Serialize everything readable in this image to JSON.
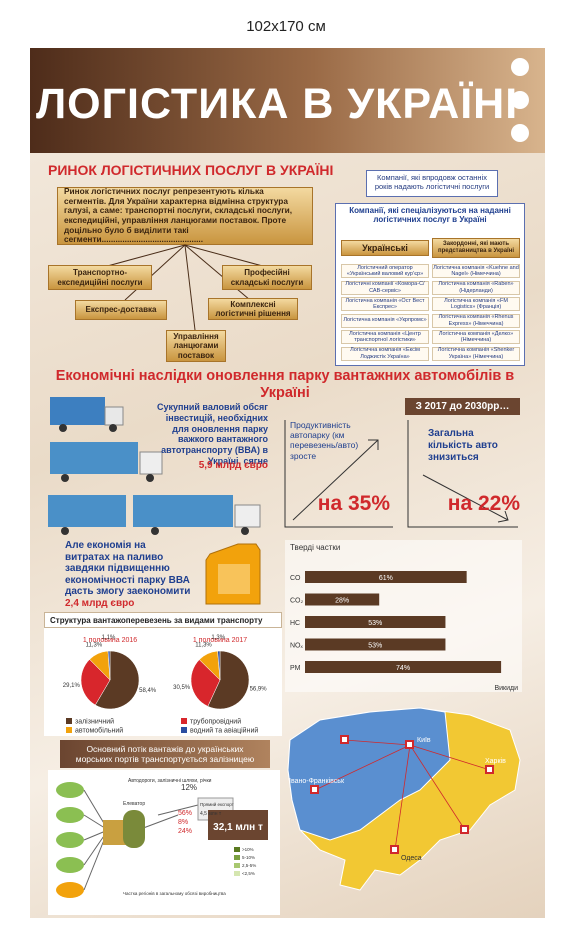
{
  "size_label": "102x170 см",
  "title": "ЛОГІСТИКА В УКРАЇНІ",
  "market": {
    "title": "РИНОК ЛОГІСТИЧНИХ ПОСЛУГ В УКРАЇНІ",
    "intro": "Ринок логістичних послуг репрезентують кілька сегментів. Для України характерна відмінна структура галузі, а саме: транспортні послуги, складські послуги, експедиційні, управління ланцюгами поставок. Проте доцільно було б виділити такі сегменти............................................",
    "segments": [
      "Транспортно-експедиційні послуги",
      "Експрес-доставка",
      "Управління ланцюгами поставок",
      "Комплексні логістичні рішення",
      "Професійні складські послуги"
    ]
  },
  "companies": {
    "note": "Компанії, які впродовж останніх років надають логістичні послуги",
    "title": "Компанії, які спеціалізуються на наданні логістичних послуг в Україні",
    "ukrainian": {
      "header": "Українські",
      "items": [
        "Логістичний оператор «Український валовий курʼєр»",
        "Логістичні компанії «Комора-С/САВ-сервіс»",
        "Логістична компанія «Ост Вест Експрес»",
        "Логістична компанія «Укрпромс»",
        "Логістична компанія «Центр транспортної логістики»",
        "Логістична компанія «Ексім Лоджистік Україна»"
      ]
    },
    "foreign": {
      "header": "Закордонні, які мають представництва в Україні",
      "items": [
        "Логістична компанія «Kuehne and Nagel» (Німеччина)",
        "Логістична компанія «Raben» (Нідерланди)",
        "Логістична компанія «FM Logistics» (Франція)",
        "Логістична компанія «Rhenus Express» (Німеччина)",
        "Логістична компанія «Делко» (Німеччина)",
        "Логістична компанія «Shenker Україна» (Німеччина)"
      ]
    }
  },
  "economy": {
    "title": "Економічні наслідки оновлення парку вантажних автомобілів в Україні",
    "investment": {
      "text": "Сукупний валовий обсяг інвестицій, необхідних для оновлення парку важкого вантажного автотранспорту (ВВА) в Україні, сягне",
      "amount": "5,9 млрд євро"
    },
    "period": "З 2017 до 2030рр…",
    "productivity": {
      "text": "Продуктивність автопарку (км перевезень/авто) зросте",
      "change": "на 35%"
    },
    "fleet": {
      "text": "Загальна кількість авто знизиться",
      "change": "на 22%"
    },
    "savings": {
      "text": "Але економія на витратах на паливо завдяки підвищенню економічності парку ВВА дасть змогу заекономити",
      "amount": "2,4 млрд євро"
    }
  },
  "emissions": {
    "type": "bar",
    "title": "Тверді частки",
    "categories": [
      "CO",
      "CO₂",
      "HC",
      "NOₓ",
      "PM"
    ],
    "values": [
      61,
      28,
      53,
      53,
      74
    ],
    "value_labels": [
      "61%",
      "28%",
      "53%",
      "53%",
      "74%"
    ],
    "xlabel": "Викиди",
    "color": "#5b3a24"
  },
  "structure": {
    "type": "pie",
    "title": "Структура вантажоперевезень за видами транспорту",
    "categories": [
      "залізничний",
      "трубопровідний",
      "автомобільний",
      "водний та авіаційний"
    ],
    "colors": [
      "#5b3a24",
      "#d8262c",
      "#f2a20c",
      "#2b4da0"
    ],
    "pies": [
      {
        "title": "1 половина 2016",
        "values": [
          58.4,
          29.1,
          11.3,
          1.1
        ],
        "value_labels": [
          "58,4%",
          "29,1%",
          "11,3%",
          "1,1%"
        ]
      },
      {
        "title": "1 половина 2017",
        "values": [
          56.9,
          30.5,
          11.3,
          1.3
        ],
        "value_labels": [
          "56,9%",
          "30,5%",
          "11,3%",
          "1,3%"
        ]
      }
    ]
  },
  "ports": {
    "text": "Основний потік вантажів до українських морських портів транспортується залізницею"
  },
  "grain_flow": {
    "roads": "Автодороги, залізничні шляхи, річки",
    "roads_share": "12%",
    "elevator": "Елеватор",
    "shares": [
      "56%",
      "8%",
      "24%"
    ],
    "export": "Прямий експорт",
    "export_amount": "4,5 млн т",
    "total": "32,1 млн т",
    "regions_note": "Частка регіонів в загальному обсязі виробництва",
    "legend": [
      ">10%",
      "5-10%",
      "2,5-5%",
      "<2,5%"
    ]
  },
  "map": {
    "cities": [
      "Київ",
      "Харків",
      "Івано-Франківськ",
      "Одеса"
    ]
  }
}
